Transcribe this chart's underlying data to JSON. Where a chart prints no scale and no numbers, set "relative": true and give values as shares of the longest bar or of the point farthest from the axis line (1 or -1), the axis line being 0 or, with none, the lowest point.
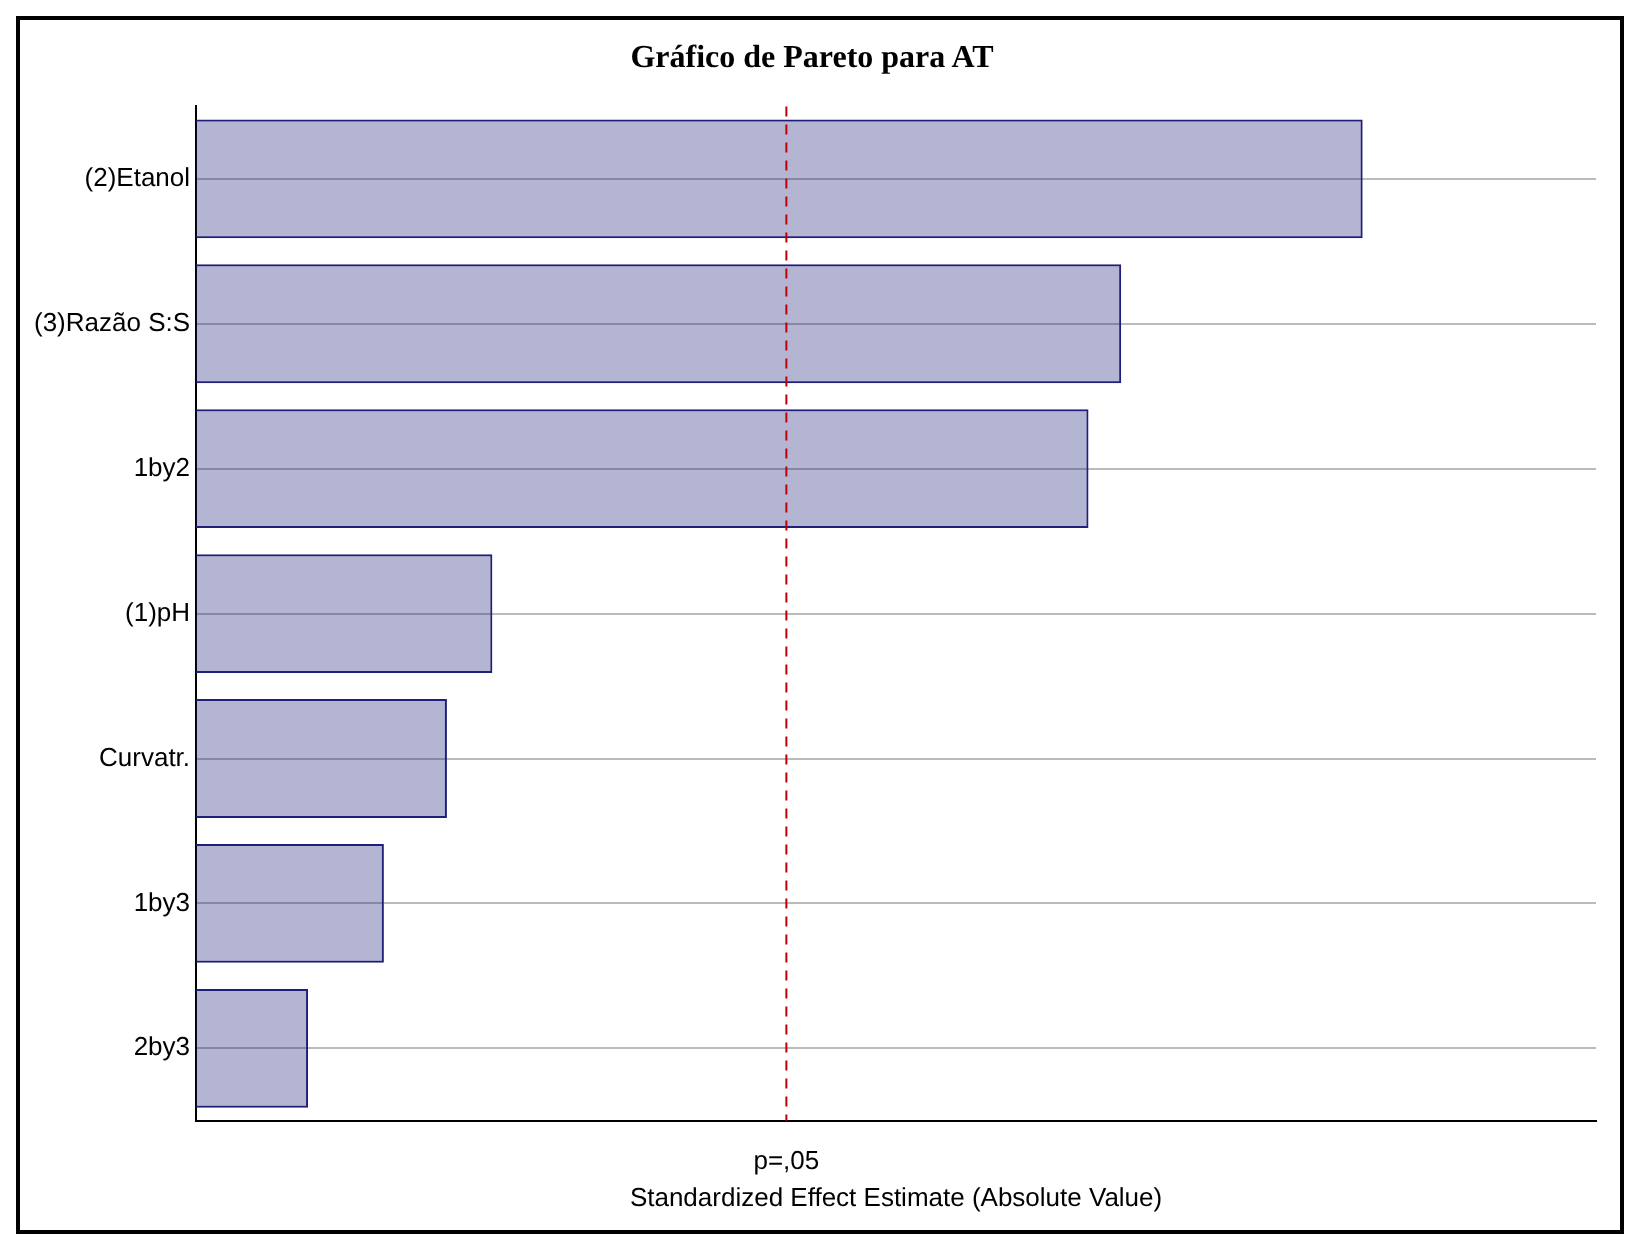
{
  "chart_data": {
    "type": "bar",
    "orientation": "horizontal",
    "relative": true,
    "title": "Gráfico de Pareto para AT",
    "xlabel": "Standardized Effect Estimate (Absolute Value)",
    "categories": [
      "(2)Etanol",
      "(3)Razão S:S",
      "1by2",
      "(1)pH",
      "Curvatr.",
      "1by3",
      "2by3"
    ],
    "values": [
      1,
      0.793,
      0.765,
      0.254,
      0.215,
      0.161,
      0.096
    ],
    "color": "#1f1f7a",
    "ref_lines": [
      {
        "axis": "x",
        "value": 0.506,
        "label": "p=,05",
        "color": "#c00000",
        "line_style": "dashed"
      }
    ],
    "grid": "y",
    "legend": false
  }
}
